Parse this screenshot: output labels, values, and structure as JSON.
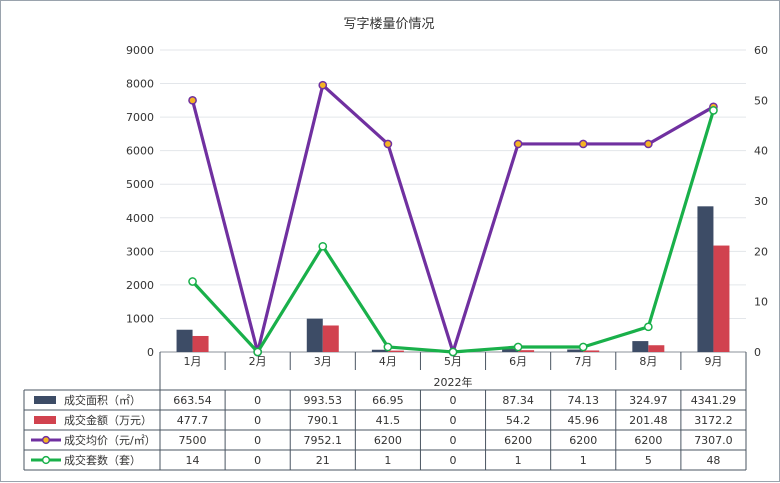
{
  "chart_data": {
    "type": "bar",
    "title": "写字楼量价情况",
    "xlabel": "2022年",
    "categories": [
      "1月",
      "2月",
      "3月",
      "4月",
      "5月",
      "6月",
      "7月",
      "8月",
      "9月"
    ],
    "ylim": [
      0,
      9000
    ],
    "y2lim": [
      0,
      60
    ],
    "y_ticks": [
      0,
      1000,
      2000,
      3000,
      4000,
      5000,
      6000,
      7000,
      8000,
      9000
    ],
    "y2_ticks": [
      0,
      10,
      20,
      30,
      40,
      50,
      60
    ],
    "grid": true,
    "legend": "left, in data table",
    "series": [
      {
        "name": "成交面积（㎡）",
        "type": "bar",
        "axis": "left",
        "color": "#3d4c66",
        "values": [
          663.54,
          0,
          993.53,
          66.95,
          0,
          87.34,
          74.13,
          324.97,
          4341.29
        ],
        "labels": [
          "663.54",
          "0",
          "993.53",
          "66.95",
          "0",
          "87.34",
          "74.13",
          "324.97",
          "4341.29"
        ]
      },
      {
        "name": "成交金额（万元）",
        "type": "bar",
        "axis": "left",
        "color": "#d1424f",
        "values": [
          477.7,
          0,
          790.1,
          41.5,
          0,
          54.2,
          45.96,
          201.48,
          3172.2
        ],
        "labels": [
          "477.7",
          "0",
          "790.1",
          "41.5",
          "0",
          "54.2",
          "45.96",
          "201.48",
          "3172.2"
        ]
      },
      {
        "name": "成交均价（元/㎡）",
        "type": "line",
        "axis": "left",
        "color": "#7030a0",
        "marker_color": "#f5b323",
        "values": [
          7500,
          0,
          7952.1,
          6200,
          0,
          6200,
          6200,
          6200,
          7307.0
        ],
        "labels": [
          "7500",
          "0",
          "7952.1",
          "6200",
          "0",
          "6200",
          "6200",
          "6200",
          "7307.0"
        ]
      },
      {
        "name": "成交套数（套）",
        "type": "line",
        "axis": "right",
        "color": "#19b04a",
        "marker_color": "#ffffff",
        "values": [
          14,
          0,
          21,
          1,
          0,
          1,
          1,
          5,
          48
        ],
        "labels": [
          "14",
          "0",
          "21",
          "1",
          "0",
          "1",
          "1",
          "5",
          "48"
        ]
      }
    ]
  }
}
